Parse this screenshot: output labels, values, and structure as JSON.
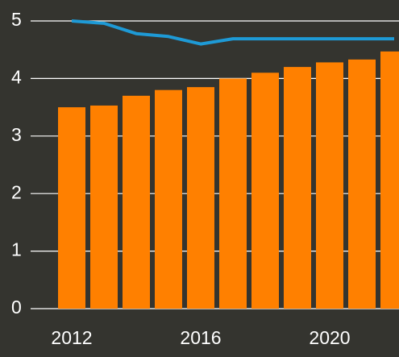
{
  "chart_data": {
    "type": "bar",
    "categories": [
      "2012",
      null,
      null,
      null,
      "2016",
      null,
      null,
      null,
      "2020",
      null,
      null
    ],
    "series": [
      {
        "type": "bar",
        "color": "#ff8000",
        "values": [
          3.5,
          3.53,
          3.7,
          3.8,
          3.85,
          4.0,
          4.1,
          4.2,
          4.28,
          4.33,
          4.47
        ]
      },
      {
        "type": "line",
        "color": "#1e9ad6",
        "values": [
          5.0,
          4.96,
          4.78,
          4.73,
          4.6,
          4.69,
          4.69,
          4.69,
          4.69,
          4.69,
          4.69
        ]
      }
    ],
    "ylim": [
      0,
      5
    ],
    "yticks": [
      0,
      1,
      2,
      3,
      4,
      5
    ],
    "grid": true
  }
}
